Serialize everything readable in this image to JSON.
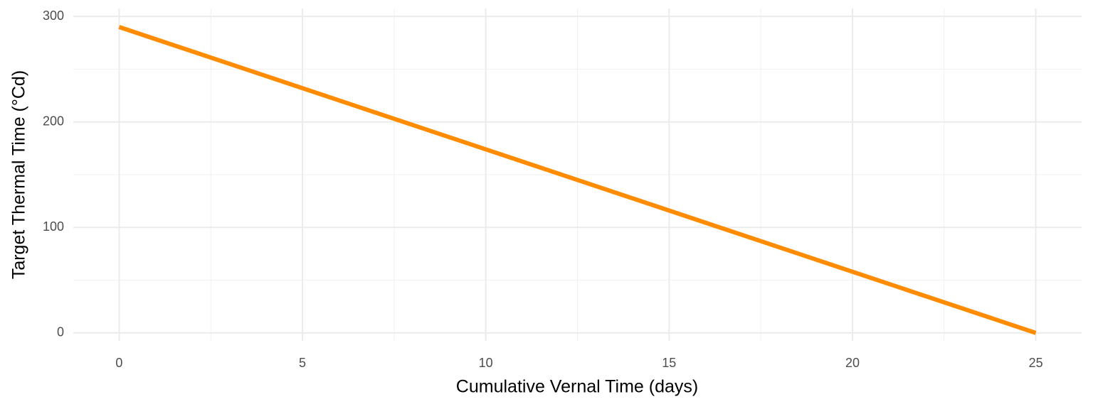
{
  "chart_data": {
    "type": "line",
    "x_label": "Cumulative Vernal Time (days)",
    "y_label": "Target Thermal Time (°Cd)",
    "x": [
      0,
      25
    ],
    "series": [
      {
        "color": "#ff8c00",
        "values": [
          290,
          0
        ]
      }
    ],
    "xlim": [
      -1.25,
      26.25
    ],
    "xticks": [
      0,
      5,
      10,
      15,
      20,
      25
    ],
    "ylim": [
      -7.5,
      307.5
    ],
    "yticks": [
      0,
      100,
      200,
      300
    ],
    "grid": true
  }
}
